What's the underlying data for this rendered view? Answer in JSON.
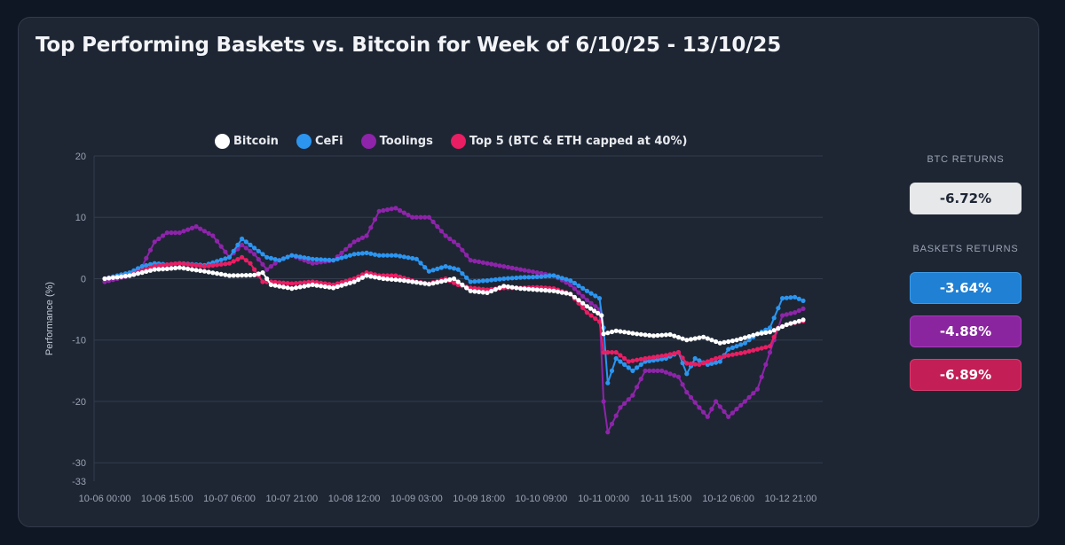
{
  "title": "Top Performing Baskets vs. Bitcoin for Week of 6/10/25 - 13/10/25",
  "sidebar": {
    "btc_label": "BTC RETURNS",
    "btc_value": "-6.72%",
    "baskets_label": "BASKETS RETURNS",
    "cefi_value": "-3.64%",
    "toolings_value": "-4.88%",
    "top5_value": "-6.89%"
  },
  "colors": {
    "Bitcoin": "#ffffff",
    "CeFi": "#2b95f0",
    "Toolings": "#8e24aa",
    "Top5": "#e91e63"
  },
  "chart_data": {
    "type": "line",
    "title": "Top Performing Baskets vs. Bitcoin for Week of 6/10/25 - 13/10/25",
    "xlabel": "",
    "ylabel": "Performance (%)",
    "ylim": [
      -33,
      20
    ],
    "yticks": [
      20,
      10,
      0,
      -10,
      -20,
      -30,
      -33
    ],
    "xtick_labels": [
      "10-06 00:00",
      "10-06 15:00",
      "10-07 06:00",
      "10-07 21:00",
      "10-08 12:00",
      "10-09 03:00",
      "10-09 18:00",
      "10-10 09:00",
      "10-11 00:00",
      "10-11 15:00",
      "10-12 06:00",
      "10-12 21:00"
    ],
    "xtick_hours": [
      0,
      15,
      30,
      45,
      60,
      75,
      90,
      105,
      120,
      135,
      150,
      165
    ],
    "x_unit": "hours since 10-06 00:00",
    "grid": true,
    "legend_position": "top",
    "series": [
      {
        "name": "Bitcoin",
        "points": [
          [
            0,
            0
          ],
          [
            6,
            0.5
          ],
          [
            12,
            1.5
          ],
          [
            15,
            1.6
          ],
          [
            18,
            1.8
          ],
          [
            24,
            1.2
          ],
          [
            30,
            0.5
          ],
          [
            36,
            0.6
          ],
          [
            38,
            1
          ],
          [
            40,
            -1
          ],
          [
            45,
            -1.6
          ],
          [
            50,
            -1
          ],
          [
            55,
            -1.5
          ],
          [
            60,
            -0.5
          ],
          [
            63,
            0.5
          ],
          [
            67,
            0
          ],
          [
            72,
            -0.3
          ],
          [
            78,
            -0.9
          ],
          [
            84,
            0
          ],
          [
            88,
            -2
          ],
          [
            92,
            -2.3
          ],
          [
            96,
            -1.2
          ],
          [
            100,
            -1.6
          ],
          [
            104,
            -1.8
          ],
          [
            108,
            -2
          ],
          [
            112,
            -2.5
          ],
          [
            116,
            -4.5
          ],
          [
            119.5,
            -6
          ],
          [
            120,
            -9
          ],
          [
            123,
            -8.5
          ],
          [
            128,
            -9
          ],
          [
            132,
            -9.3
          ],
          [
            136,
            -9.1
          ],
          [
            140,
            -10
          ],
          [
            144,
            -9.5
          ],
          [
            148,
            -10.5
          ],
          [
            152,
            -10
          ],
          [
            157,
            -9
          ],
          [
            160,
            -8.7
          ],
          [
            164,
            -7.5
          ],
          [
            168,
            -6.7
          ]
        ]
      },
      {
        "name": "CeFi",
        "points": [
          [
            0,
            0
          ],
          [
            6,
            1
          ],
          [
            9,
            2
          ],
          [
            12,
            2.5
          ],
          [
            15,
            2.3
          ],
          [
            18,
            2.5
          ],
          [
            24,
            2.2
          ],
          [
            30,
            3.5
          ],
          [
            33,
            6.5
          ],
          [
            36,
            5
          ],
          [
            39,
            3.5
          ],
          [
            42,
            3
          ],
          [
            45,
            3.8
          ],
          [
            50,
            3.2
          ],
          [
            55,
            3
          ],
          [
            60,
            4
          ],
          [
            63,
            4.2
          ],
          [
            66,
            3.8
          ],
          [
            70,
            3.8
          ],
          [
            75,
            3.2
          ],
          [
            78,
            1.2
          ],
          [
            82,
            2
          ],
          [
            85,
            1.5
          ],
          [
            88,
            -0.5
          ],
          [
            92,
            -0.3
          ],
          [
            96,
            0
          ],
          [
            100,
            0.2
          ],
          [
            104,
            0.3
          ],
          [
            108,
            0.5
          ],
          [
            112,
            -0.3
          ],
          [
            116,
            -2
          ],
          [
            119,
            -3.2
          ],
          [
            120,
            -8
          ],
          [
            121,
            -17
          ],
          [
            123,
            -13
          ],
          [
            127,
            -15
          ],
          [
            130,
            -13.5
          ],
          [
            135,
            -13
          ],
          [
            138,
            -12
          ],
          [
            140,
            -15.5
          ],
          [
            142,
            -13
          ],
          [
            145,
            -14
          ],
          [
            148,
            -13.5
          ],
          [
            150,
            -11.5
          ],
          [
            154,
            -10.5
          ],
          [
            157,
            -9
          ],
          [
            160,
            -8
          ],
          [
            163,
            -3.2
          ],
          [
            166,
            -3
          ],
          [
            168,
            -3.6
          ]
        ]
      },
      {
        "name": "Toolings",
        "points": [
          [
            0,
            -0.5
          ],
          [
            6,
            0.5
          ],
          [
            9,
            2
          ],
          [
            12,
            6
          ],
          [
            15,
            7.5
          ],
          [
            18,
            7.5
          ],
          [
            22,
            8.5
          ],
          [
            26,
            7
          ],
          [
            30,
            3.5
          ],
          [
            33,
            5.5
          ],
          [
            36,
            4
          ],
          [
            39,
            1.5
          ],
          [
            42,
            3
          ],
          [
            45,
            3.8
          ],
          [
            50,
            2.5
          ],
          [
            55,
            3
          ],
          [
            60,
            6
          ],
          [
            63,
            7
          ],
          [
            66,
            11
          ],
          [
            70,
            11.5
          ],
          [
            74,
            10
          ],
          [
            78,
            10
          ],
          [
            82,
            7
          ],
          [
            85,
            5.5
          ],
          [
            88,
            3
          ],
          [
            92,
            2.5
          ],
          [
            96,
            2
          ],
          [
            100,
            1.5
          ],
          [
            104,
            1
          ],
          [
            108,
            0.5
          ],
          [
            112,
            -1
          ],
          [
            116,
            -3.5
          ],
          [
            119,
            -5
          ],
          [
            120,
            -20
          ],
          [
            121,
            -25
          ],
          [
            124,
            -21
          ],
          [
            127,
            -19
          ],
          [
            130,
            -15
          ],
          [
            134,
            -15
          ],
          [
            138,
            -16
          ],
          [
            140,
            -18.5
          ],
          [
            143,
            -21
          ],
          [
            145,
            -22.5
          ],
          [
            147,
            -20
          ],
          [
            150,
            -22.5
          ],
          [
            154,
            -20
          ],
          [
            157,
            -18
          ],
          [
            160,
            -12
          ],
          [
            163,
            -6
          ],
          [
            166,
            -5.5
          ],
          [
            168,
            -4.9
          ]
        ]
      },
      {
        "name": "Top 5 (BTC & ETH capped at 40%)",
        "points": [
          [
            0,
            0
          ],
          [
            6,
            0.5
          ],
          [
            9,
            1.3
          ],
          [
            12,
            2
          ],
          [
            15,
            2.3
          ],
          [
            18,
            2.5
          ],
          [
            24,
            2
          ],
          [
            30,
            2.5
          ],
          [
            33,
            3.5
          ],
          [
            35,
            2.5
          ],
          [
            38,
            -0.5
          ],
          [
            40,
            -0.5
          ],
          [
            45,
            -0.8
          ],
          [
            50,
            -0.5
          ],
          [
            55,
            -1
          ],
          [
            60,
            0
          ],
          [
            63,
            1
          ],
          [
            66,
            0.5
          ],
          [
            70,
            0.5
          ],
          [
            75,
            -0.5
          ],
          [
            78,
            -0.8
          ],
          [
            82,
            0
          ],
          [
            85,
            -1
          ],
          [
            88,
            -1.5
          ],
          [
            92,
            -1.8
          ],
          [
            96,
            -1.5
          ],
          [
            100,
            -1.5
          ],
          [
            104,
            -1.4
          ],
          [
            108,
            -1.6
          ],
          [
            112,
            -2.5
          ],
          [
            116,
            -5.5
          ],
          [
            119,
            -7
          ],
          [
            120,
            -12
          ],
          [
            123,
            -12
          ],
          [
            126,
            -13.5
          ],
          [
            130,
            -13
          ],
          [
            135,
            -12.5
          ],
          [
            138,
            -12
          ],
          [
            140,
            -13.8
          ],
          [
            143,
            -14
          ],
          [
            147,
            -13
          ],
          [
            150,
            -12.5
          ],
          [
            154,
            -12
          ],
          [
            157,
            -11.5
          ],
          [
            160,
            -11
          ],
          [
            162,
            -8
          ],
          [
            165,
            -7.3
          ],
          [
            168,
            -6.9
          ]
        ]
      }
    ]
  }
}
